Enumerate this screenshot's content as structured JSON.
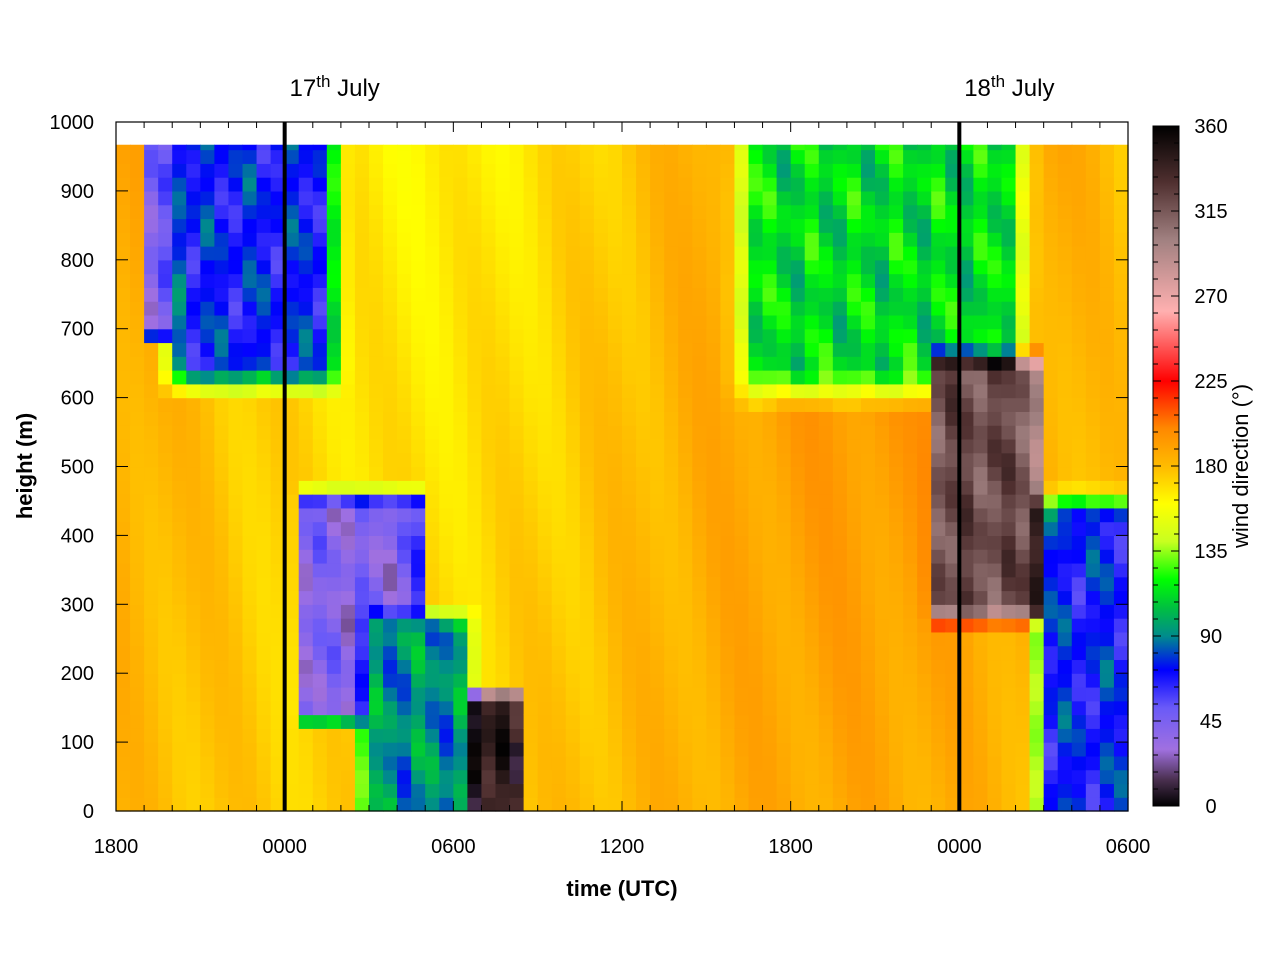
{
  "chart_data": {
    "type": "heatmap",
    "title": "",
    "xlabel": "time (UTC)",
    "ylabel": "height (m)",
    "x_range_hours": [
      0,
      36
    ],
    "x_ticks": [
      {
        "hour": 0,
        "label": "1800"
      },
      {
        "hour": 6,
        "label": "0000"
      },
      {
        "hour": 12,
        "label": "0600"
      },
      {
        "hour": 18,
        "label": "1200"
      },
      {
        "hour": 24,
        "label": "1800"
      },
      {
        "hour": 30,
        "label": "0000"
      },
      {
        "hour": 36,
        "label": "0600"
      }
    ],
    "ylim": [
      0,
      1000
    ],
    "y_ticks": [
      0,
      100,
      200,
      300,
      400,
      500,
      600,
      700,
      800,
      900,
      1000
    ],
    "data_top_height_m": 967,
    "colorbar": {
      "label": "wind direction (°)",
      "range": [
        0,
        360
      ],
      "ticks": [
        0,
        45,
        90,
        135,
        180,
        225,
        270,
        315,
        360
      ],
      "stops": [
        {
          "value": 0,
          "color": "#000000"
        },
        {
          "value": 14,
          "color": "#4a3050"
        },
        {
          "value": 30,
          "color": "#a070e0"
        },
        {
          "value": 52,
          "color": "#6a5af8"
        },
        {
          "value": 72,
          "color": "#0000ff"
        },
        {
          "value": 90,
          "color": "#008c8c"
        },
        {
          "value": 105,
          "color": "#00c040"
        },
        {
          "value": 120,
          "color": "#00ff00"
        },
        {
          "value": 140,
          "color": "#c8ff20"
        },
        {
          "value": 160,
          "color": "#ffff00"
        },
        {
          "value": 178,
          "color": "#ffc000"
        },
        {
          "value": 200,
          "color": "#ff8800"
        },
        {
          "value": 225,
          "color": "#ff0000"
        },
        {
          "value": 262,
          "color": "#ffb0b0"
        },
        {
          "value": 300,
          "color": "#a08080"
        },
        {
          "value": 330,
          "color": "#503030"
        },
        {
          "value": 360,
          "color": "#000000"
        }
      ]
    },
    "event_lines": [
      {
        "hour": 6,
        "label_main": "17",
        "label_sup": "th",
        "label_rest": " July"
      },
      {
        "hour": 30,
        "label_main": "18",
        "label_sup": "th",
        "label_rest": " July"
      }
    ],
    "grid": {
      "time_step_hours": 0.5,
      "height_step_m": 20
    },
    "field_description": "Wind direction (degrees) vs time and height; southerly (~170-190) dominates, easterly/north-easterly (~50-110) aloft at night, northerly pockets near 300-450 m after each midnight.",
    "field_regions": [
      {
        "name": "evening-easterly-aloft",
        "t": [
          2.5,
          7.2
        ],
        "z": [
          650,
          967
        ],
        "value": 72,
        "feather_h": 1.2,
        "feather_z": 60
      },
      {
        "name": "evening-purple-strip",
        "t": [
          1.0,
          1.8
        ],
        "z": [
          700,
          967
        ],
        "value": 45,
        "feather_h": 0.2,
        "feather_z": 30
      },
      {
        "name": "morning-northerly-pocket",
        "t": [
          6.8,
          10.6
        ],
        "z": [
          150,
          440
        ],
        "value": 40,
        "feather_h": 0.6,
        "feather_z": 40
      },
      {
        "name": "morning-surface-easterly",
        "t": [
          9.0,
          12.4
        ],
        "z": [
          0,
          260
        ],
        "value": 92,
        "feather_h": 0.5,
        "feather_z": 50
      },
      {
        "name": "morning-northerly-column",
        "t": [
          12.8,
          14.2
        ],
        "z": [
          0,
          160
        ],
        "value": 345,
        "feather_h": 0.3,
        "feather_z": 30
      },
      {
        "name": "afternoon-easterly-aloft",
        "t": [
          23.0,
          31.5
        ],
        "z": [
          650,
          967
        ],
        "value": 112,
        "feather_h": 1.5,
        "feather_z": 80
      },
      {
        "name": "night-northerly-pocket",
        "t": [
          29.2,
          32.6
        ],
        "z": [
          300,
          640
        ],
        "value": 320,
        "feather_h": 0.5,
        "feather_z": 40
      },
      {
        "name": "dawn-surface-easterly",
        "t": [
          33.2,
          36.0
        ],
        "z": [
          0,
          420
        ],
        "value": 72,
        "feather_h": 0.8,
        "feather_z": 60
      }
    ]
  }
}
